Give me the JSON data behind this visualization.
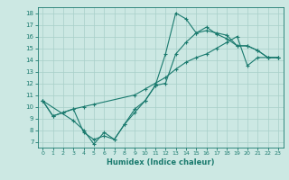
{
  "line1_x": [
    0,
    1,
    2,
    3,
    4,
    5,
    6,
    7,
    8,
    9,
    10,
    11,
    12,
    13,
    14,
    15,
    16,
    17,
    18,
    19,
    20,
    21,
    22,
    23
  ],
  "line1_y": [
    10.5,
    9.2,
    9.5,
    9.8,
    7.8,
    7.2,
    7.5,
    7.2,
    8.5,
    9.5,
    10.5,
    11.8,
    12.0,
    14.5,
    15.5,
    16.3,
    16.5,
    16.3,
    16.1,
    15.2,
    15.2,
    14.8,
    14.2,
    14.2
  ],
  "line2_x": [
    0,
    1,
    2,
    3,
    4,
    5,
    9,
    10,
    11,
    12,
    13,
    14,
    15,
    16,
    17,
    18,
    19,
    20,
    21,
    22,
    23
  ],
  "line2_y": [
    10.5,
    9.2,
    9.5,
    9.8,
    10.0,
    10.2,
    11.0,
    11.5,
    12.0,
    12.5,
    13.2,
    13.8,
    14.2,
    14.5,
    15.0,
    15.5,
    16.0,
    13.5,
    14.2,
    14.2,
    14.2
  ],
  "line3_x": [
    0,
    3,
    4,
    5,
    6,
    7,
    8,
    9,
    10,
    11,
    12,
    13,
    14,
    15,
    16,
    17,
    18,
    19,
    20,
    21,
    22,
    23
  ],
  "line3_y": [
    10.5,
    8.8,
    8.0,
    6.8,
    7.8,
    7.2,
    8.5,
    9.8,
    10.5,
    11.8,
    14.5,
    18.0,
    17.5,
    16.3,
    16.8,
    16.2,
    15.8,
    15.2,
    15.2,
    14.8,
    14.2,
    14.2
  ],
  "line_color": "#1a7a6e",
  "bg_color": "#cce8e3",
  "grid_color": "#a8cfc8",
  "xlabel": "Humidex (Indice chaleur)",
  "xlim": [
    -0.5,
    23.5
  ],
  "ylim": [
    6.5,
    18.5
  ],
  "yticks": [
    7,
    8,
    9,
    10,
    11,
    12,
    13,
    14,
    15,
    16,
    17,
    18
  ],
  "xticks": [
    0,
    1,
    2,
    3,
    4,
    5,
    6,
    7,
    8,
    9,
    10,
    11,
    12,
    13,
    14,
    15,
    16,
    17,
    18,
    19,
    20,
    21,
    22,
    23
  ]
}
